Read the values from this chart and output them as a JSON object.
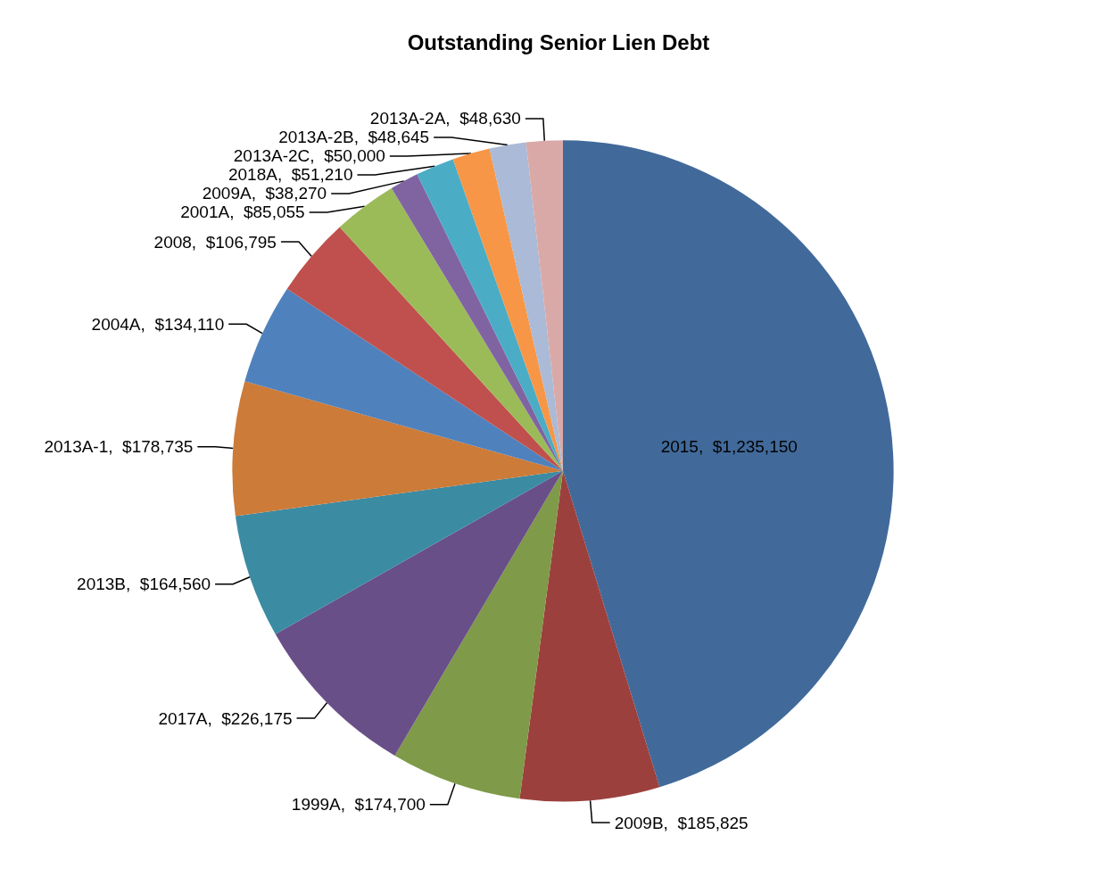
{
  "chart_data": {
    "type": "pie",
    "title": "Outstanding Senior Lien Debt",
    "categories": [
      "2015",
      "2009B",
      "1999A",
      "2017A",
      "2013B",
      "2013A-1",
      "2004A",
      "2008",
      "2001A",
      "2009A",
      "2018A",
      "2013A-2C",
      "2013A-2B",
      "2013A-2A"
    ],
    "values": [
      1235150,
      185825,
      174700,
      226175,
      164560,
      178735,
      134110,
      106795,
      85055,
      38270,
      51210,
      50000,
      48645,
      48630
    ],
    "value_labels": [
      "$1,235,150",
      "$185,825",
      "$174,700",
      "$226,175",
      "$164,560",
      "$178,735",
      "$134,110",
      "$106,795",
      "$85,055",
      "$38,270",
      "$51,210",
      "$50,000",
      "$48,645",
      "$48,630"
    ],
    "colors": [
      "#416a9b",
      "#9c403d",
      "#7f9a48",
      "#694f87",
      "#3b8ba3",
      "#cc7b38",
      "#4f81bd",
      "#c0504d",
      "#9bbb59",
      "#8064a2",
      "#4bacc6",
      "#f79646",
      "#aabad7",
      "#d9a9a8"
    ],
    "legend": false
  }
}
